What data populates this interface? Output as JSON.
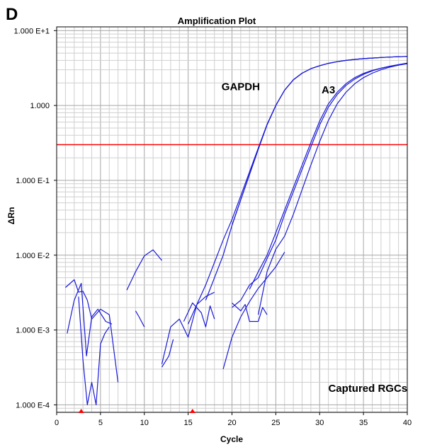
{
  "chart_data": {
    "type": "line",
    "panel_label": "D",
    "title": "Amplification Plot",
    "xlabel": "Cycle",
    "ylabel": "ΔRn",
    "xlim": [
      0,
      40
    ],
    "ylim_log10": [
      -4.1,
      1.05
    ],
    "y_scale": "log",
    "grid": true,
    "x_ticks": [
      {
        "v": 0,
        "label": "0"
      },
      {
        "v": 5,
        "label": "5"
      },
      {
        "v": 10,
        "label": "10"
      },
      {
        "v": 15,
        "label": "15"
      },
      {
        "v": 20,
        "label": "20"
      },
      {
        "v": 25,
        "label": "25"
      },
      {
        "v": 30,
        "label": "30"
      },
      {
        "v": 35,
        "label": "35"
      },
      {
        "v": 40,
        "label": "40"
      }
    ],
    "y_ticks": [
      {
        "v": 10,
        "label": "1.000 E+1"
      },
      {
        "v": 1,
        "label": "1.000"
      },
      {
        "v": 0.1,
        "label": "1.000 E-1"
      },
      {
        "v": 0.01,
        "label": "1.000 E-2"
      },
      {
        "v": 0.001,
        "label": "1.000 E-3"
      },
      {
        "v": 0.0001,
        "label": "1.000 E-4"
      }
    ],
    "threshold": {
      "value": 0.3,
      "color": "#ff0000"
    },
    "baseline_markers": [
      2.8,
      15.5
    ],
    "series_color": "#1a1ad6",
    "annotations": [
      {
        "text": "GAPDH",
        "x": 21,
        "y": 1.6
      },
      {
        "text": "A3",
        "x": 31,
        "y": 1.45
      },
      {
        "text": "Captured RGCs",
        "x": 35.5,
        "y": 0.00015
      }
    ],
    "series": [
      {
        "x": [
          20,
          21,
          22,
          23,
          24,
          25,
          26,
          27,
          28,
          29,
          30,
          31,
          32,
          33,
          34,
          35,
          36,
          37,
          38,
          39,
          40
        ],
        "y": [
          0.025,
          0.055,
          0.12,
          0.26,
          0.55,
          1.0,
          1.6,
          2.2,
          2.7,
          3.1,
          3.4,
          3.65,
          3.85,
          4.0,
          4.12,
          4.22,
          4.3,
          4.37,
          4.43,
          4.48,
          4.52
        ]
      },
      {
        "x": [
          17,
          18,
          19,
          20,
          21,
          22,
          23,
          24,
          25,
          26,
          27,
          28,
          29,
          30,
          31,
          32,
          33,
          34,
          35,
          36,
          37,
          38,
          39,
          40
        ],
        "y": [
          0.0025,
          0.005,
          0.01,
          0.025,
          0.055,
          0.12,
          0.26,
          0.55,
          1.0,
          1.6,
          2.2,
          2.7,
          3.1,
          3.4,
          3.65,
          3.85,
          4.0,
          4.12,
          4.22,
          4.3,
          4.37,
          4.43,
          4.48,
          4.52
        ]
      },
      {
        "x": [
          15,
          16,
          17,
          18,
          19,
          20,
          21,
          22,
          23,
          24,
          25,
          26,
          27,
          28,
          29,
          30,
          31,
          32,
          33,
          34,
          35,
          36,
          37,
          38,
          39,
          40
        ],
        "y": [
          0.0012,
          0.0022,
          0.004,
          0.008,
          0.016,
          0.03,
          0.062,
          0.13,
          0.27,
          0.56,
          1.0,
          1.6,
          2.2,
          2.7,
          3.1,
          3.4,
          3.65,
          3.85,
          4.0,
          4.12,
          4.22,
          4.3,
          4.37,
          4.43,
          4.48,
          4.52
        ]
      },
      {
        "x": [
          22,
          23,
          24,
          25,
          26,
          27,
          28,
          29,
          30,
          31,
          32,
          33,
          34,
          35,
          36,
          37,
          38,
          39,
          40
        ],
        "y": [
          0.0035,
          0.006,
          0.01,
          0.02,
          0.04,
          0.08,
          0.16,
          0.32,
          0.62,
          1.05,
          1.5,
          1.95,
          2.35,
          2.68,
          2.95,
          3.15,
          3.32,
          3.48,
          3.62
        ]
      },
      {
        "x": [
          20,
          21,
          22,
          23,
          24,
          25,
          26,
          27,
          28,
          29,
          30,
          31,
          32,
          33,
          34,
          35,
          36,
          37,
          38,
          39,
          40
        ],
        "y": [
          0.002,
          0.0025,
          0.004,
          0.005,
          0.009,
          0.016,
          0.035,
          0.07,
          0.14,
          0.28,
          0.55,
          0.95,
          1.4,
          1.85,
          2.25,
          2.6,
          2.9,
          3.15,
          3.35,
          3.52,
          3.68
        ]
      },
      {
        "x": [
          23,
          24,
          25,
          26,
          27,
          28,
          29,
          30,
          31,
          32,
          33,
          34,
          35,
          36,
          37,
          38,
          39,
          40
        ],
        "y": [
          0.0016,
          0.006,
          0.012,
          0.018,
          0.035,
          0.075,
          0.16,
          0.33,
          0.63,
          1.05,
          1.5,
          1.95,
          2.35,
          2.7,
          3.0,
          3.25,
          3.45,
          3.62
        ]
      },
      {
        "x": [
          19,
          20,
          21,
          22,
          23,
          24,
          25,
          26
        ],
        "y": [
          0.0003,
          0.0008,
          0.0015,
          0.0024,
          0.0036,
          0.005,
          0.007,
          0.011
        ]
      },
      {
        "x": [
          1,
          2,
          2.5,
          3,
          3.5,
          4,
          5,
          6,
          7
        ],
        "y": [
          0.0037,
          0.0047,
          0.0032,
          0.0033,
          0.0025,
          0.0014,
          0.0019,
          0.0016,
          0.0002
        ]
      },
      {
        "x": [
          1.2,
          2,
          2.8,
          3.4,
          4,
          4.7,
          5.6,
          6.3
        ],
        "y": [
          0.0009,
          0.0025,
          0.0042,
          0.00045,
          0.0015,
          0.0019,
          0.0013,
          0.0012
        ]
      },
      {
        "x": [
          2.5,
          3,
          3.5,
          4,
          4.5,
          5,
          5.5,
          6
        ],
        "y": [
          0.0028,
          0.0004,
          0.0001,
          0.0002,
          0.0001,
          0.00065,
          0.0009,
          0.0011
        ]
      },
      {
        "x": [
          8,
          9,
          10,
          11,
          12
        ],
        "y": [
          0.0034,
          0.006,
          0.0098,
          0.0118,
          0.0085
        ]
      },
      {
        "x": [
          9,
          9.4,
          10
        ],
        "y": [
          0.0018,
          0.0015,
          0.0011
        ]
      },
      {
        "x": [
          12,
          12.8,
          13.3
        ],
        "y": [
          0.00032,
          0.00045,
          0.00075
        ]
      },
      {
        "x": [
          12,
          13,
          14,
          15,
          16,
          17,
          18
        ],
        "y": [
          0.00035,
          0.0011,
          0.0014,
          0.0008,
          0.0022,
          0.0028,
          0.0032
        ]
      },
      {
        "x": [
          14.5,
          15.5,
          16.5,
          17,
          17.5,
          18
        ],
        "y": [
          0.0013,
          0.0023,
          0.0017,
          0.0011,
          0.0021,
          0.0014
        ]
      },
      {
        "x": [
          20,
          21,
          21.5,
          22,
          23,
          23.5,
          24
        ],
        "y": [
          0.0023,
          0.0018,
          0.0022,
          0.0013,
          0.0013,
          0.002,
          0.0016
        ]
      }
    ]
  }
}
